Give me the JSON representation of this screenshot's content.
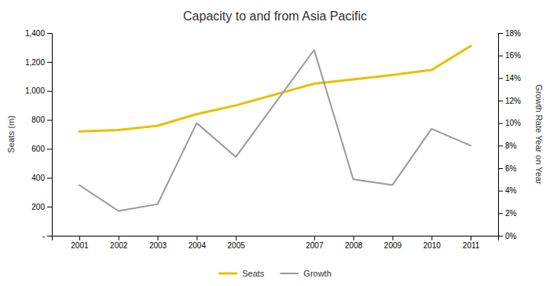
{
  "chart_data": {
    "type": "line",
    "title": "Capacity to and from Asia Pacific",
    "x": [
      2001,
      2002,
      2003,
      2004,
      2005,
      2007,
      2008,
      2009,
      2010,
      2011
    ],
    "xlim": [
      2000.3,
      2011.7
    ],
    "xticks": [
      2001,
      2002,
      2003,
      2004,
      2005,
      2007,
      2008,
      2009,
      2010,
      2011
    ],
    "ylabel": "Seats (m)",
    "y2label": "Growth Rate Year on Year",
    "ylim": [
      0,
      1400
    ],
    "yticks": [
      {
        "value": 0,
        "label": "-"
      },
      200,
      400,
      600,
      800,
      {
        "value": 1000,
        "label": "1,000"
      },
      {
        "value": 1200,
        "label": "1,200"
      },
      {
        "value": 1400,
        "label": "1,400"
      }
    ],
    "y2lim": [
      0,
      18
    ],
    "y2ticks": [
      {
        "value": 0,
        "label": "0%"
      },
      {
        "value": 2,
        "label": "2%"
      },
      {
        "value": 4,
        "label": "4%"
      },
      {
        "value": 6,
        "label": "6%"
      },
      {
        "value": 8,
        "label": "8%"
      },
      {
        "value": 10,
        "label": "10%"
      },
      {
        "value": 12,
        "label": "12%"
      },
      {
        "value": 14,
        "label": "14%"
      },
      {
        "value": 16,
        "label": "16%"
      },
      {
        "value": 18,
        "label": "18%"
      }
    ],
    "series": [
      {
        "name": "Seats",
        "color": "#E8C000",
        "values": [
          720,
          730,
          760,
          840,
          900,
          1050,
          1080,
          1110,
          1145,
          1310
        ]
      },
      {
        "name": "Growth",
        "color": "#999999",
        "axis": "y2",
        "values": [
          4.5,
          2.2,
          2.8,
          10.0,
          7.0,
          16.5,
          5.0,
          4.5,
          9.5,
          8.0
        ]
      }
    ],
    "legend": "bottom",
    "grid": false
  }
}
